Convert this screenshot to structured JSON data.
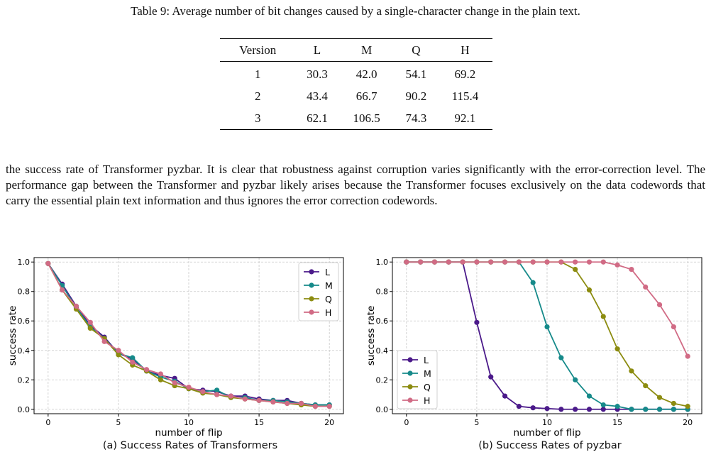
{
  "caption": "Table 9: Average number of bit changes caused by a single-character change in the plain text.",
  "table": {
    "headers": [
      "Version",
      "L",
      "M",
      "Q",
      "H"
    ],
    "rows": [
      [
        "1",
        "30.3",
        "42.0",
        "54.1",
        "69.2"
      ],
      [
        "2",
        "43.4",
        "66.7",
        "90.2",
        "115.4"
      ],
      [
        "3",
        "62.1",
        "106.5",
        "74.3",
        "92.1"
      ]
    ]
  },
  "paragraph": "the success rate of Transformer pyzbar. It is clear that robustness against corruption varies significantly with the error-correction level. The performance gap between the Transformer and pyzbar likely arises because the Transformer focuses exclusively on the data codewords that carry the essential plain text information and thus ignores the error correction codewords.",
  "colors": {
    "L": "#4b1a8a",
    "M": "#168a8a",
    "Q": "#8c8c10",
    "H": "#d16b85"
  },
  "chart_data": [
    {
      "type": "line",
      "caption": "(a) Success Rates of Transformers",
      "xlabel": "number of flip",
      "ylabel": "success rate",
      "xlim": [
        -1,
        21
      ],
      "ylim": [
        -0.03,
        1.03
      ],
      "xticks": [
        0,
        5,
        10,
        15,
        20
      ],
      "yticks": [
        0.0,
        0.2,
        0.4,
        0.6,
        0.8,
        1.0
      ],
      "grid": true,
      "legend": "top-right",
      "x": [
        0,
        1,
        2,
        3,
        4,
        5,
        6,
        7,
        8,
        9,
        10,
        11,
        12,
        13,
        14,
        15,
        16,
        17,
        18,
        19,
        20
      ],
      "series": [
        {
          "name": "L",
          "values": [
            0.99,
            0.85,
            0.7,
            0.57,
            0.49,
            0.38,
            0.34,
            0.26,
            0.23,
            0.21,
            0.14,
            0.13,
            0.12,
            0.09,
            0.09,
            0.07,
            0.06,
            0.06,
            0.04,
            0.03,
            0.03
          ]
        },
        {
          "name": "M",
          "values": [
            0.99,
            0.84,
            0.69,
            0.56,
            0.48,
            0.38,
            0.35,
            0.26,
            0.22,
            0.19,
            0.14,
            0.12,
            0.13,
            0.08,
            0.08,
            0.06,
            0.06,
            0.05,
            0.04,
            0.03,
            0.03
          ]
        },
        {
          "name": "Q",
          "values": [
            0.99,
            0.81,
            0.68,
            0.55,
            0.48,
            0.37,
            0.3,
            0.26,
            0.2,
            0.16,
            0.14,
            0.11,
            0.1,
            0.08,
            0.07,
            0.06,
            0.05,
            0.04,
            0.03,
            0.02,
            0.02
          ]
        },
        {
          "name": "H",
          "values": [
            0.99,
            0.81,
            0.7,
            0.59,
            0.46,
            0.4,
            0.32,
            0.27,
            0.24,
            0.18,
            0.15,
            0.12,
            0.1,
            0.09,
            0.07,
            0.06,
            0.05,
            0.04,
            0.04,
            0.02,
            0.02
          ]
        }
      ]
    },
    {
      "type": "line",
      "caption": "(b) Success Rates of pyzbar",
      "xlabel": "number of flip",
      "ylabel": "success rate",
      "xlim": [
        -1,
        21
      ],
      "ylim": [
        -0.03,
        1.03
      ],
      "xticks": [
        0,
        5,
        10,
        15,
        20
      ],
      "yticks": [
        0.0,
        0.2,
        0.4,
        0.6,
        0.8,
        1.0
      ],
      "grid": true,
      "legend": "lower-left",
      "x": [
        0,
        1,
        2,
        3,
        4,
        5,
        6,
        7,
        8,
        9,
        10,
        11,
        12,
        13,
        14,
        15,
        16,
        17,
        18,
        19,
        20
      ],
      "series": [
        {
          "name": "L",
          "values": [
            1,
            1,
            1,
            1,
            1,
            0.59,
            0.22,
            0.09,
            0.02,
            0.01,
            0.005,
            0,
            0,
            0,
            0,
            0,
            0,
            0,
            0,
            0,
            0
          ]
        },
        {
          "name": "M",
          "values": [
            1,
            1,
            1,
            1,
            1,
            1,
            1,
            1,
            1,
            0.86,
            0.56,
            0.35,
            0.2,
            0.09,
            0.03,
            0.02,
            0,
            0,
            0,
            0,
            0
          ]
        },
        {
          "name": "Q",
          "values": [
            1,
            1,
            1,
            1,
            1,
            1,
            1,
            1,
            1,
            1,
            1,
            1,
            0.95,
            0.81,
            0.63,
            0.41,
            0.26,
            0.16,
            0.08,
            0.04,
            0.02
          ]
        },
        {
          "name": "H",
          "values": [
            1,
            1,
            1,
            1,
            1,
            1,
            1,
            1,
            1,
            1,
            1,
            1,
            1,
            1,
            1,
            0.98,
            0.95,
            0.83,
            0.71,
            0.56,
            0.36
          ]
        }
      ]
    }
  ]
}
